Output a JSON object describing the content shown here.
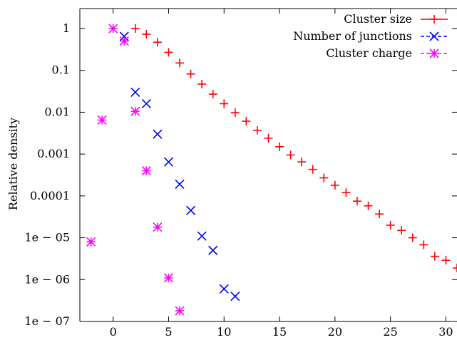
{
  "chart_data": {
    "type": "scatter",
    "title": "",
    "xlabel": "",
    "ylabel": "Relative density",
    "xlim": [
      -3,
      31
    ],
    "ylim": [
      1e-07,
      3
    ],
    "yscale": "log",
    "grid": false,
    "legend_position": "top-right",
    "x_ticks": [
      0,
      5,
      10,
      15,
      20,
      25,
      30
    ],
    "y_ticks": [
      {
        "value": 1,
        "label": "1"
      },
      {
        "value": 0.1,
        "label": "0.1"
      },
      {
        "value": 0.01,
        "label": "0.01"
      },
      {
        "value": 0.001,
        "label": "0.001"
      },
      {
        "value": 0.0001,
        "label": "0.0001"
      },
      {
        "value": 1e-05,
        "label": "1e − 05"
      },
      {
        "value": 1e-06,
        "label": "1e − 06"
      },
      {
        "value": 1e-07,
        "label": "1e − 07"
      }
    ],
    "series": [
      {
        "name": "Cluster size",
        "marker": "plus",
        "color": "#ff0000",
        "points": [
          {
            "x": 2,
            "y": 1.0
          },
          {
            "x": 3,
            "y": 0.73
          },
          {
            "x": 4,
            "y": 0.47
          },
          {
            "x": 5,
            "y": 0.27
          },
          {
            "x": 6,
            "y": 0.15
          },
          {
            "x": 7,
            "y": 0.082
          },
          {
            "x": 8,
            "y": 0.047
          },
          {
            "x": 9,
            "y": 0.027
          },
          {
            "x": 10,
            "y": 0.016
          },
          {
            "x": 11,
            "y": 0.0098
          },
          {
            "x": 12,
            "y": 0.0061
          },
          {
            "x": 13,
            "y": 0.0037
          },
          {
            "x": 14,
            "y": 0.0024
          },
          {
            "x": 15,
            "y": 0.0015
          },
          {
            "x": 16,
            "y": 0.00095
          },
          {
            "x": 17,
            "y": 0.00065
          },
          {
            "x": 18,
            "y": 0.00043
          },
          {
            "x": 19,
            "y": 0.00027
          },
          {
            "x": 20,
            "y": 0.00018
          },
          {
            "x": 21,
            "y": 0.00012
          },
          {
            "x": 22,
            "y": 7.5e-05
          },
          {
            "x": 23,
            "y": 5.8e-05
          },
          {
            "x": 24,
            "y": 3.7e-05
          },
          {
            "x": 25,
            "y": 2e-05
          },
          {
            "x": 26,
            "y": 1.5e-05
          },
          {
            "x": 27,
            "y": 1e-05
          },
          {
            "x": 28,
            "y": 6.8e-06
          },
          {
            "x": 29,
            "y": 3.6e-06
          },
          {
            "x": 30,
            "y": 2.9e-06
          },
          {
            "x": 31,
            "y": 1.9e-06
          }
        ]
      },
      {
        "name": "Number of junctions",
        "marker": "cross",
        "color": "#0000ff",
        "points": [
          {
            "x": 1,
            "y": 0.65
          },
          {
            "x": 2,
            "y": 0.03
          },
          {
            "x": 3,
            "y": 0.016
          },
          {
            "x": 4,
            "y": 0.003
          },
          {
            "x": 5,
            "y": 0.00065
          },
          {
            "x": 6,
            "y": 0.00019
          },
          {
            "x": 7,
            "y": 4.5e-05
          },
          {
            "x": 8,
            "y": 1.1e-05
          },
          {
            "x": 9,
            "y": 5e-06
          },
          {
            "x": 10,
            "y": 6e-07
          },
          {
            "x": 11,
            "y": 4e-07
          }
        ]
      },
      {
        "name": "Cluster charge",
        "marker": "star",
        "color": "#ff00ff",
        "points": [
          {
            "x": -2,
            "y": 8e-06
          },
          {
            "x": -1,
            "y": 0.0065
          },
          {
            "x": 0,
            "y": 1.0
          },
          {
            "x": 1,
            "y": 0.5
          },
          {
            "x": 2,
            "y": 0.0105
          },
          {
            "x": 3,
            "y": 0.0004
          },
          {
            "x": 4,
            "y": 1.8e-05
          },
          {
            "x": 5,
            "y": 1.1e-06
          },
          {
            "x": 6,
            "y": 1.8e-07
          }
        ]
      }
    ]
  }
}
